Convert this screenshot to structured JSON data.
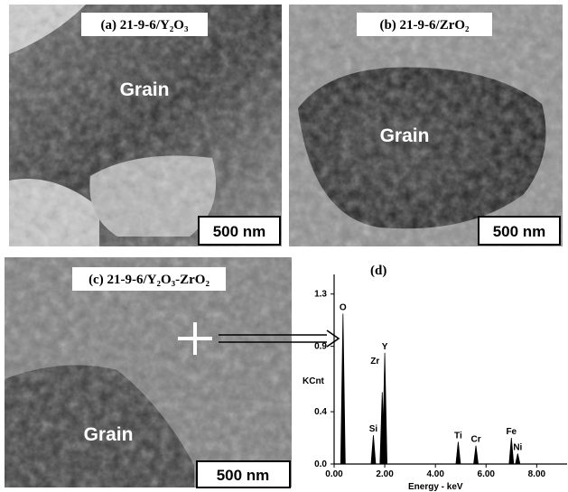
{
  "panels": [
    {
      "caption": "(a) 21-9-6/Y₂O₃",
      "annotation": "Grain",
      "scale_bar": "500 nm"
    },
    {
      "caption": "(b) 21-9-6/ZrO₂",
      "annotation": "Grain",
      "scale_bar": "500 nm"
    },
    {
      "caption": "(c) 21-9-6/Y₂O₃-ZrO₂",
      "annotation": "Grain",
      "scale_bar": "500 nm"
    }
  ],
  "chart_data": {
    "type": "spectrum",
    "label": "(d)",
    "y_label": "KCnt",
    "x_label": "Energy - keV",
    "xlim": [
      0,
      9.2
    ],
    "ylim": [
      0,
      1.45
    ],
    "xticks": [
      {
        "value": 0,
        "label": "0.00"
      },
      {
        "value": 2,
        "label": "2.00"
      },
      {
        "value": 4,
        "label": "4.00"
      },
      {
        "value": 6,
        "label": "6.00"
      },
      {
        "value": 8,
        "label": "8.00"
      }
    ],
    "yticks": [
      {
        "value": 0,
        "label": "0.0"
      },
      0.4,
      0.9,
      1.3
    ],
    "color": "#000000",
    "peaks": [
      {
        "name": "O",
        "energy": 0.35,
        "height": 1.15
      },
      {
        "name": "Si",
        "energy": 1.55,
        "height": 0.22
      },
      {
        "name": "Zr",
        "energy": 1.9,
        "height": 0.55
      },
      {
        "name": "Y",
        "energy": 2.0,
        "height": 0.85
      },
      {
        "name": "Ti",
        "energy": 4.9,
        "height": 0.17
      },
      {
        "name": "Cr",
        "energy": 5.6,
        "height": 0.14
      },
      {
        "name": "Fe",
        "energy": 7.0,
        "height": 0.2
      },
      {
        "name": "Ni",
        "energy": 7.25,
        "height": 0.08
      }
    ]
  }
}
